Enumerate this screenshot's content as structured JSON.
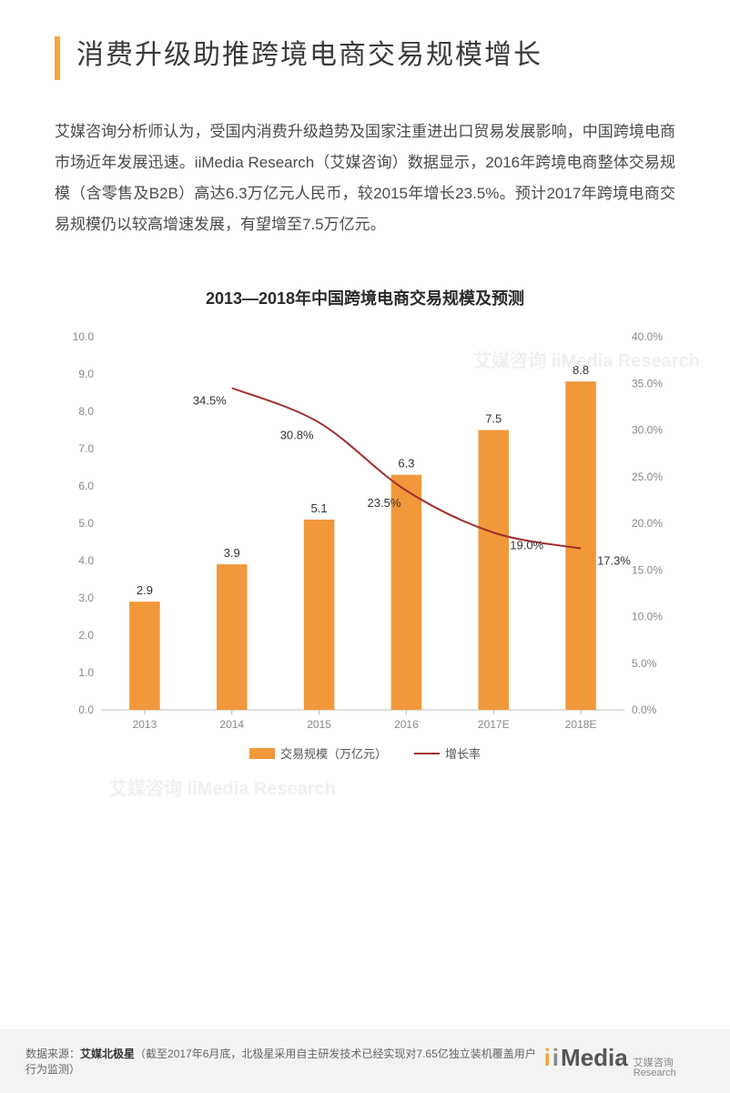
{
  "title": "消费升级助推跨境电商交易规模增长",
  "title_bar_color": "#f7a43a",
  "body": "艾媒咨询分析师认为，受国内消费升级趋势及国家注重进出口贸易发展影响，中国跨境电商市场近年发展迅速。iiMedia Research（艾媒咨询）数据显示，2016年跨境电商整体交易规模（含零售及B2B）高达6.3万亿元人民币，较2015年增长23.5%。预计2017年跨境电商交易规模仍以较高增速发展，有望增至7.5万亿元。",
  "chart": {
    "title": "2013—2018年中国跨境电商交易规模及预测",
    "type": "bar+line",
    "categories": [
      "2013",
      "2014",
      "2015",
      "2016",
      "2017E",
      "2018E"
    ],
    "bar_series": {
      "name": "交易规模（万亿元）",
      "values": [
        2.9,
        3.9,
        5.1,
        6.3,
        7.5,
        8.8
      ],
      "color": "#f1983b",
      "bar_width_ratio": 0.35
    },
    "line_series": {
      "name": "增长率",
      "values": [
        null,
        34.5,
        30.8,
        23.5,
        19.0,
        17.3
      ],
      "color": "#a02c2c",
      "line_width": 2
    },
    "left_axis": {
      "min": 0,
      "max": 10,
      "step": 1,
      "decimals": 1,
      "ticks": [
        "0.0",
        "1.0",
        "2.0",
        "3.0",
        "4.0",
        "5.0",
        "6.0",
        "7.0",
        "8.0",
        "9.0",
        "10.0"
      ]
    },
    "right_axis": {
      "min": 0,
      "max": 40,
      "step": 5,
      "suffix": "%",
      "decimals": 1,
      "ticks": [
        "0.0%",
        "5.0%",
        "10.0%",
        "15.0%",
        "20.0%",
        "25.0%",
        "30.0%",
        "35.0%",
        "40.0%"
      ]
    },
    "axis_font_size": 12,
    "label_font_size": 13,
    "tick_color": "#888888",
    "baseline_color": "#bcbcbc",
    "plot_bg": "#ffffff"
  },
  "legend": {
    "bar_label": "交易规模（万亿元）",
    "line_label": "增长率"
  },
  "footer": {
    "prefix": "数据来源：",
    "source": "艾媒北极星",
    "note": "（截至2017年6月底，北极星采用自主研发技术已经实现对7.65亿独立装机覆盖用户行为监测）",
    "logo_main": "iiMedia",
    "logo_sub": "艾媒咨询\nResearch"
  },
  "watermark_text": "艾媒咨询 iiMedia Research"
}
